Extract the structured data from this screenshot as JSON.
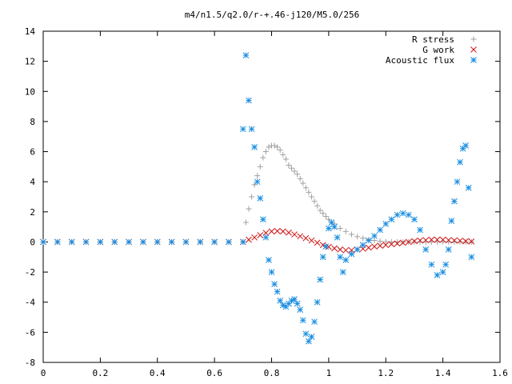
{
  "chart_data": {
    "type": "scatter",
    "title": "m4/n1.5/q2.0/r-+.46-j120/M5.0/256",
    "xlabel": "",
    "ylabel": "",
    "xlim": [
      0,
      1.6
    ],
    "ylim": [
      -8,
      14
    ],
    "x_ticks": [
      "0",
      "0.2",
      "0.4",
      "0.6",
      "0.8",
      "1",
      "1.2",
      "1.4",
      "1.6"
    ],
    "y_ticks": [
      "-8",
      "-6",
      "-4",
      "-2",
      "0",
      "2",
      "4",
      "6",
      "8",
      "10",
      "12",
      "14"
    ],
    "x_tick_values": [
      0,
      0.2,
      0.4,
      0.6,
      0.8,
      1.0,
      1.2,
      1.4,
      1.6
    ],
    "y_tick_values": [
      -8,
      -6,
      -4,
      -2,
      0,
      2,
      4,
      6,
      8,
      10,
      12,
      14
    ],
    "grid": false,
    "legend_position": "top-right",
    "series": [
      {
        "name": "R stress",
        "marker": "plus",
        "color": "#a0a0a0",
        "x": [
          0.0,
          0.05,
          0.1,
          0.15,
          0.2,
          0.25,
          0.3,
          0.35,
          0.4,
          0.45,
          0.5,
          0.55,
          0.6,
          0.65,
          0.7,
          0.71,
          0.72,
          0.73,
          0.74,
          0.75,
          0.76,
          0.77,
          0.78,
          0.79,
          0.8,
          0.81,
          0.82,
          0.83,
          0.84,
          0.85,
          0.86,
          0.87,
          0.88,
          0.89,
          0.9,
          0.91,
          0.92,
          0.93,
          0.94,
          0.95,
          0.96,
          0.97,
          0.98,
          0.99,
          1.0,
          1.02,
          1.04,
          1.06,
          1.08,
          1.1,
          1.12,
          1.14,
          1.16,
          1.18,
          1.2,
          1.22,
          1.24,
          1.26,
          1.28,
          1.3,
          1.32,
          1.34,
          1.36,
          1.38,
          1.4,
          1.42,
          1.44,
          1.46,
          1.48,
          1.5
        ],
        "y": [
          0,
          0,
          0,
          0,
          0,
          0,
          0,
          0,
          0,
          0,
          0,
          0,
          0,
          0,
          0,
          1.3,
          2.2,
          3.0,
          3.8,
          4.4,
          5.0,
          5.6,
          6.0,
          6.3,
          6.4,
          6.4,
          6.3,
          6.1,
          5.8,
          5.5,
          5.1,
          4.9,
          4.7,
          4.5,
          4.2,
          3.9,
          3.6,
          3.3,
          3.0,
          2.7,
          2.4,
          2.1,
          1.9,
          1.7,
          1.5,
          1.2,
          0.9,
          0.7,
          0.5,
          0.35,
          0.25,
          0.15,
          0.1,
          0.05,
          0.02,
          0,
          0,
          0,
          0,
          0,
          0,
          0,
          0,
          0,
          0,
          0,
          0,
          0,
          0,
          0
        ]
      },
      {
        "name": "G work",
        "marker": "cross",
        "color": "#d01010",
        "x": [
          0.0,
          0.05,
          0.1,
          0.15,
          0.2,
          0.25,
          0.3,
          0.35,
          0.4,
          0.45,
          0.5,
          0.55,
          0.6,
          0.65,
          0.7,
          0.72,
          0.74,
          0.76,
          0.78,
          0.8,
          0.82,
          0.84,
          0.86,
          0.88,
          0.9,
          0.92,
          0.94,
          0.96,
          0.98,
          1.0,
          1.02,
          1.04,
          1.06,
          1.08,
          1.1,
          1.12,
          1.14,
          1.16,
          1.18,
          1.2,
          1.22,
          1.24,
          1.26,
          1.28,
          1.3,
          1.32,
          1.34,
          1.36,
          1.38,
          1.4,
          1.42,
          1.44,
          1.46,
          1.48,
          1.5
        ],
        "y": [
          0,
          0,
          0,
          0,
          0,
          0,
          0,
          0,
          0,
          0,
          0,
          0,
          0,
          0,
          0,
          0.15,
          0.3,
          0.45,
          0.6,
          0.7,
          0.72,
          0.7,
          0.62,
          0.5,
          0.38,
          0.25,
          0.1,
          -0.05,
          -0.2,
          -0.32,
          -0.42,
          -0.5,
          -0.55,
          -0.55,
          -0.5,
          -0.45,
          -0.38,
          -0.3,
          -0.25,
          -0.2,
          -0.15,
          -0.1,
          -0.05,
          0,
          0.05,
          0.1,
          0.12,
          0.15,
          0.15,
          0.15,
          0.12,
          0.1,
          0.08,
          0.05,
          0.03
        ]
      },
      {
        "name": "Acoustic flux",
        "marker": "asterisk",
        "color": "#1a8ee0",
        "x": [
          0.0,
          0.05,
          0.1,
          0.15,
          0.2,
          0.25,
          0.3,
          0.35,
          0.4,
          0.45,
          0.5,
          0.55,
          0.6,
          0.65,
          0.7,
          0.7,
          0.71,
          0.72,
          0.73,
          0.74,
          0.75,
          0.76,
          0.77,
          0.78,
          0.79,
          0.8,
          0.81,
          0.82,
          0.83,
          0.84,
          0.85,
          0.86,
          0.87,
          0.88,
          0.89,
          0.9,
          0.91,
          0.92,
          0.93,
          0.94,
          0.95,
          0.96,
          0.97,
          0.98,
          0.99,
          1.0,
          1.01,
          1.02,
          1.03,
          1.04,
          1.05,
          1.06,
          1.08,
          1.1,
          1.12,
          1.14,
          1.16,
          1.18,
          1.2,
          1.22,
          1.24,
          1.26,
          1.28,
          1.3,
          1.32,
          1.34,
          1.36,
          1.38,
          1.4,
          1.41,
          1.42,
          1.43,
          1.44,
          1.45,
          1.46,
          1.47,
          1.48,
          1.49,
          1.5
        ],
        "y": [
          0,
          0,
          0,
          0,
          0,
          0,
          0,
          0,
          0,
          0,
          0,
          0,
          0,
          0,
          0,
          7.5,
          12.4,
          9.4,
          7.5,
          6.3,
          4.0,
          2.9,
          1.5,
          0.3,
          -1.2,
          -2.0,
          -2.8,
          -3.3,
          -3.9,
          -4.2,
          -4.3,
          -4.1,
          -3.9,
          -3.8,
          -4.1,
          -4.5,
          -5.2,
          -6.1,
          -6.6,
          -6.3,
          -5.3,
          -4.0,
          -2.5,
          -1.0,
          -0.3,
          0.9,
          1.3,
          1.0,
          0.3,
          -1.0,
          -2.0,
          -1.2,
          -0.8,
          -0.5,
          -0.2,
          0.1,
          0.4,
          0.8,
          1.2,
          1.5,
          1.8,
          1.9,
          1.8,
          1.5,
          0.8,
          -0.5,
          -1.5,
          -2.2,
          -2.0,
          -1.5,
          -0.5,
          1.4,
          2.7,
          4.0,
          5.3,
          6.2,
          6.4,
          3.6,
          -1.0
        ]
      }
    ]
  }
}
